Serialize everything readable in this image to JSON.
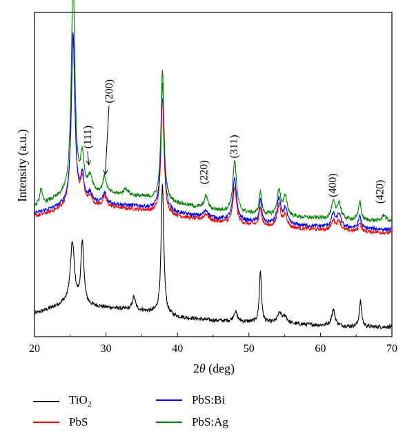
{
  "chart_data": {
    "type": "line",
    "title": "",
    "xlabel": "2θ (deg)",
    "xlabel_main": "2",
    "xlabel_symbol": "θ",
    "xlabel_unit": "(deg)",
    "ylabel": "Intensity (a.u.)",
    "xlim": [
      20,
      70
    ],
    "x_ticks": [
      "20",
      "30",
      "40",
      "50",
      "60",
      "70"
    ],
    "y_ticks_shown": false,
    "grid": false,
    "legend_position": "bottom",
    "series": [
      {
        "name": "TiO2",
        "name_main": "TiO",
        "name_sub": "2",
        "color": "#000000",
        "baseline": [
          [
            20,
            0.07
          ],
          [
            24,
            0.1
          ],
          [
            30,
            0.09
          ],
          [
            35,
            0.08
          ],
          [
            40,
            0.06
          ],
          [
            45,
            0.05
          ],
          [
            50,
            0.045
          ],
          [
            55,
            0.04
          ],
          [
            60,
            0.035
          ],
          [
            65,
            0.03
          ],
          [
            70,
            0.03
          ]
        ],
        "peaks": [
          [
            25.3,
            0.19,
            0.35
          ],
          [
            26.7,
            0.19,
            0.25
          ],
          [
            33.9,
            0.04,
            0.25
          ],
          [
            37.9,
            0.4,
            0.22
          ],
          [
            48.1,
            0.03,
            0.3
          ],
          [
            51.6,
            0.16,
            0.18
          ],
          [
            54.3,
            0.03,
            0.4
          ],
          [
            55.1,
            0.02,
            0.3
          ],
          [
            61.8,
            0.05,
            0.3
          ],
          [
            65.6,
            0.08,
            0.2
          ]
        ]
      },
      {
        "name": "PbS",
        "color": "#ff0000",
        "baseline": [
          [
            20,
            0.37
          ],
          [
            24,
            0.39
          ],
          [
            30,
            0.4
          ],
          [
            35,
            0.39
          ],
          [
            40,
            0.37
          ],
          [
            45,
            0.355
          ],
          [
            50,
            0.345
          ],
          [
            55,
            0.335
          ],
          [
            60,
            0.33
          ],
          [
            65,
            0.325
          ],
          [
            70,
            0.32
          ]
        ],
        "peaks": [
          [
            25.4,
            0.54,
            0.3
          ],
          [
            26.7,
            0.08,
            0.3
          ],
          [
            27.8,
            0.03,
            0.4
          ],
          [
            29.8,
            0.03,
            0.3
          ],
          [
            37.9,
            0.36,
            0.25
          ],
          [
            44.0,
            0.02,
            0.4
          ],
          [
            48.0,
            0.11,
            0.3
          ],
          [
            51.6,
            0.06,
            0.2
          ],
          [
            54.2,
            0.07,
            0.3
          ],
          [
            55.1,
            0.04,
            0.3
          ],
          [
            61.8,
            0.03,
            0.3
          ],
          [
            62.6,
            0.03,
            0.3
          ],
          [
            65.5,
            0.03,
            0.2
          ]
        ]
      },
      {
        "name": "PbS:Bi",
        "color": "#0000ff",
        "baseline": [
          [
            20,
            0.38
          ],
          [
            24,
            0.4
          ],
          [
            30,
            0.41
          ],
          [
            35,
            0.4
          ],
          [
            40,
            0.38
          ],
          [
            45,
            0.365
          ],
          [
            50,
            0.355
          ],
          [
            55,
            0.345
          ],
          [
            60,
            0.34
          ],
          [
            65,
            0.335
          ],
          [
            70,
            0.33
          ]
        ],
        "peaks": [
          [
            25.4,
            0.53,
            0.3
          ],
          [
            26.7,
            0.08,
            0.3
          ],
          [
            27.8,
            0.03,
            0.4
          ],
          [
            29.8,
            0.03,
            0.3
          ],
          [
            37.9,
            0.4,
            0.25
          ],
          [
            44.0,
            0.02,
            0.4
          ],
          [
            48.0,
            0.13,
            0.3
          ],
          [
            51.6,
            0.07,
            0.2
          ],
          [
            54.2,
            0.08,
            0.3
          ],
          [
            55.1,
            0.05,
            0.3
          ],
          [
            61.8,
            0.04,
            0.3
          ],
          [
            62.6,
            0.04,
            0.3
          ],
          [
            65.5,
            0.04,
            0.2
          ]
        ]
      },
      {
        "name": "PbS:Ag",
        "color": "#008000",
        "baseline": [
          [
            20,
            0.4
          ],
          [
            24,
            0.43
          ],
          [
            30,
            0.44
          ],
          [
            35,
            0.43
          ],
          [
            40,
            0.41
          ],
          [
            45,
            0.39
          ],
          [
            50,
            0.38
          ],
          [
            55,
            0.37
          ],
          [
            60,
            0.365
          ],
          [
            65,
            0.36
          ],
          [
            70,
            0.355
          ]
        ],
        "peaks": [
          [
            20.9,
            0.05,
            0.2
          ],
          [
            25.4,
            0.67,
            0.3
          ],
          [
            26.7,
            0.11,
            0.3
          ],
          [
            27.8,
            0.05,
            0.4
          ],
          [
            29.8,
            0.05,
            0.3
          ],
          [
            32.8,
            0.02,
            0.4
          ],
          [
            37.9,
            0.4,
            0.25
          ],
          [
            44.0,
            0.04,
            0.3
          ],
          [
            48.0,
            0.16,
            0.3
          ],
          [
            51.6,
            0.07,
            0.2
          ],
          [
            54.2,
            0.08,
            0.3
          ],
          [
            55.1,
            0.06,
            0.3
          ],
          [
            61.8,
            0.05,
            0.3
          ],
          [
            62.6,
            0.05,
            0.3
          ],
          [
            65.5,
            0.06,
            0.2
          ],
          [
            68.9,
            0.02,
            0.3
          ]
        ]
      }
    ],
    "annotations": [
      {
        "text": "(111)",
        "x": 27.9,
        "y": 0.58,
        "arrow_to": [
          27.6,
          0.53
        ]
      },
      {
        "text": "(200)",
        "x": 30.9,
        "y": 0.72,
        "arrow_to": [
          29.9,
          0.5
        ]
      },
      {
        "text": "(220)",
        "x": 44.2,
        "y": 0.47,
        "arrow": false
      },
      {
        "text": "(311)",
        "x": 48.4,
        "y": 0.55,
        "arrow": false
      },
      {
        "text": "(400)",
        "x": 62.2,
        "y": 0.43,
        "arrow": false
      },
      {
        "text": "(420)",
        "x": 68.8,
        "y": 0.41,
        "arrow": false
      }
    ]
  }
}
